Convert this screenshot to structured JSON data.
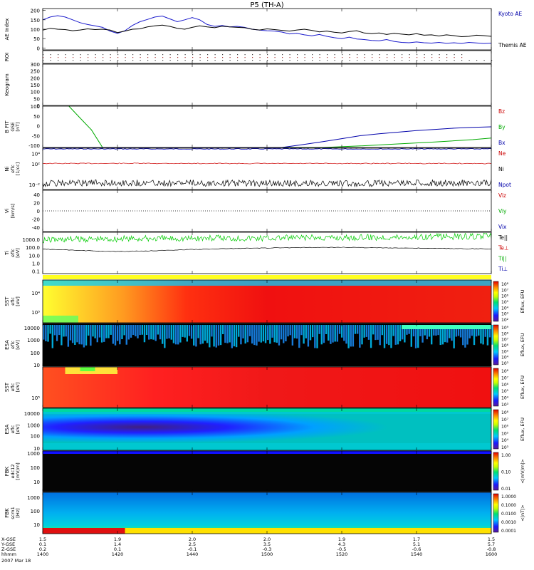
{
  "chart_data": {
    "type": "line",
    "title": "P5 (TH-A)",
    "date_label": "2007 Mar 18",
    "time_axis": {
      "label": "hhmm",
      "start": "14:00",
      "end": "16:00",
      "tick_labels": [
        "1400",
        "1420",
        "1440",
        "1500",
        "1520",
        "1540",
        "1600"
      ]
    },
    "ephemeris": [
      {
        "label": "X-GSE",
        "values": [
          "1.5",
          "1.9",
          "2.0",
          "2.0",
          "1.9",
          "1.7",
          "1.5"
        ]
      },
      {
        "label": "Y-GSE",
        "values": [
          "0.1",
          "1.4",
          "2.5",
          "3.5",
          "4.3",
          "5.1",
          "5.7"
        ]
      },
      {
        "label": "Z-GSE",
        "values": [
          "0.2",
          "0.1",
          "-0.1",
          "-0.3",
          "-0.5",
          "-0.6",
          "-0.8"
        ]
      }
    ],
    "panels": [
      {
        "id": "ae",
        "ylabel": "AE Index",
        "ylim": [
          -10,
          210
        ],
        "yticks": [
          "200",
          "150",
          "100",
          "50",
          "0"
        ],
        "legend": [
          {
            "name": "Kyoto AE",
            "color": "#0000aa"
          },
          {
            "name": "Themis AE",
            "color": "#000000"
          }
        ],
        "series": [
          {
            "name": "Kyoto AE",
            "color": "#1a1acc",
            "x": [
              0,
              2,
              4,
              6,
              8,
              10,
              12,
              14,
              16,
              18,
              20,
              22,
              24,
              26,
              28,
              30,
              32,
              34,
              36,
              38,
              40,
              42,
              44,
              46,
              48,
              50,
              52,
              54,
              56,
              58,
              60,
              62,
              64,
              66,
              68,
              70,
              72,
              74,
              76,
              78,
              80,
              82,
              84,
              86,
              88,
              90,
              92,
              94,
              96,
              98,
              100,
              102,
              104,
              106,
              108,
              110,
              112,
              114,
              116,
              118,
              120
            ],
            "values": [
              150,
              165,
              172,
              165,
              150,
              135,
              125,
              118,
              110,
              90,
              78,
              92,
              120,
              140,
              152,
              165,
              170,
              155,
              140,
              150,
              162,
              150,
              125,
              115,
              120,
              112,
              115,
              110,
              100,
              95,
              92,
              90,
              85,
              75,
              78,
              70,
              65,
              72,
              62,
              55,
              50,
              58,
              48,
              45,
              40,
              38,
              45,
              35,
              30,
              28,
              32,
              28,
              26,
              30,
              25,
              28,
              24,
              30,
              27,
              24,
              26
            ]
          },
          {
            "name": "Themis AE",
            "color": "#000000",
            "x": [
              0,
              2,
              4,
              6,
              8,
              10,
              12,
              14,
              16,
              18,
              20,
              22,
              24,
              26,
              28,
              30,
              32,
              34,
              36,
              38,
              40,
              42,
              44,
              46,
              48,
              50,
              52,
              54,
              56,
              58,
              60,
              62,
              64,
              66,
              68,
              70,
              72,
              74,
              76,
              78,
              80,
              82,
              84,
              86,
              88,
              90,
              92,
              94,
              96,
              98,
              100,
              102,
              104,
              106,
              108,
              110,
              112,
              114,
              116,
              118,
              120
            ],
            "values": [
              95,
              105,
              100,
              98,
              92,
              96,
              102,
              98,
              100,
              96,
              82,
              90,
              100,
              102,
              112,
              118,
              122,
              115,
              105,
              100,
              110,
              118,
              112,
              108,
              116,
              112,
              110,
              108,
              100,
              96,
              102,
              98,
              94,
              90,
              96,
              100,
              94,
              86,
              90,
              84,
              80,
              88,
              92,
              80,
              76,
              80,
              72,
              78,
              74,
              70,
              76,
              68,
              70,
              64,
              70,
              66,
              60,
              62,
              68,
              66,
              62
            ]
          }
        ]
      },
      {
        "id": "roi",
        "ylabel": "ROI",
        "dot_rows": [
          {
            "color": "#444444",
            "x_end": 112
          },
          {
            "color": "#aa3333",
            "x_end": 112
          },
          {
            "color": "#444444",
            "x_end": 120
          }
        ]
      },
      {
        "id": "keogram",
        "ylabel": "Keogram",
        "ylim": [
          0,
          300
        ],
        "yticks": [
          "300",
          "250",
          "200",
          "150",
          "100",
          "50",
          "0"
        ]
      },
      {
        "id": "bfit",
        "ylabel": "B FIT",
        "sublabels": [
          "GSE",
          "[nT]"
        ],
        "ylim": [
          -110,
          100
        ],
        "yticks": [
          "100",
          "50",
          "0",
          "-50",
          "-100"
        ],
        "legend": [
          {
            "name": "Bz",
            "color": "#cc0000"
          },
          {
            "name": "By",
            "color": "#00aa00"
          },
          {
            "name": "Bx",
            "color": "#0000aa"
          }
        ],
        "series": [
          {
            "name": "By",
            "color": "#00aa00",
            "x": [
              7,
              10,
              13,
              15,
              16,
              75,
              85,
              95,
              105,
              115,
              120
            ],
            "values": [
              100,
              40,
              -20,
              -80,
              -110,
              -110,
              -102,
              -92,
              -82,
              -70,
              -62
            ]
          },
          {
            "name": "Bx",
            "color": "#0000aa",
            "x": [
              0,
              64,
              70,
              75,
              80,
              85,
              90,
              95,
              100,
              105,
              110,
              115,
              120
            ],
            "values": [
              -110,
              -110,
              -94,
              -80,
              -65,
              -50,
              -40,
              -32,
              -24,
              -18,
              -12,
              -8,
              -5
            ]
          }
        ]
      },
      {
        "id": "ni",
        "ylabel": "Ni",
        "sublabels": [
          "eflc",
          "[1/cc]"
        ],
        "log": true,
        "ylim": [
          0.001,
          100000
        ],
        "ytick_values": [
          10000,
          100,
          0.01
        ],
        "legend": [
          {
            "name": "Ne",
            "color": "#cc0000"
          },
          {
            "name": "Ni",
            "color": "#000000"
          },
          {
            "name": "Npot",
            "color": "#0000aa"
          }
        ],
        "series": [
          {
            "name": "Npot",
            "color": "#0000cc",
            "x": [
              0,
              20,
              40,
              60,
              80,
              100,
              120
            ],
            "values": [
              70000,
              70000,
              69000,
              70000,
              69500,
              70000,
              70000
            ]
          },
          {
            "name": "Ne",
            "color": "#cc0000",
            "x": [
              0,
              20,
              40,
              60,
              80,
              100,
              120
            ],
            "values": [
              110,
              115,
              112,
              108,
              110,
              112,
              110
            ]
          },
          {
            "name": "Ni",
            "color": "#000000",
            "x": [
              0,
              20,
              40,
              60,
              80,
              100,
              120
            ],
            "values": [
              0.015,
              0.02,
              0.018,
              0.016,
              0.014,
              0.018,
              0.02
            ]
          }
        ]
      },
      {
        "id": "vi",
        "ylabel": "Vi",
        "sublabels": [
          "[km/s]"
        ],
        "ylim": [
          -50,
          50
        ],
        "yticks": [
          "40",
          "20",
          "0",
          "-20",
          "-40"
        ],
        "legend": [
          {
            "name": "Viz",
            "color": "#cc0000"
          },
          {
            "name": "Viy",
            "color": "#00aa00"
          },
          {
            "name": "Vix",
            "color": "#0000aa"
          }
        ]
      },
      {
        "id": "ti",
        "ylabel": "Ti",
        "sublabels": [
          "eflc",
          "[eV]"
        ],
        "log": true,
        "ylim": [
          0.05,
          8000
        ],
        "ytick_values": [
          1000,
          100,
          10,
          1,
          0.1
        ],
        "yticks": [
          "1000.0",
          "100.0",
          "10.0",
          "1.0",
          "0.1"
        ],
        "legend": [
          {
            "name": "Te||",
            "color": "#000000"
          },
          {
            "name": "Te⊥",
            "color": "#cc0000"
          },
          {
            "name": "Ti||",
            "color": "#00aa00"
          },
          {
            "name": "Ti⊥",
            "color": "#0000aa"
          }
        ],
        "series": [
          {
            "name": "Ti||",
            "color": "#00cc00",
            "x": [
              0,
              10,
              20,
              30,
              40,
              50,
              60,
              70,
              80,
              90,
              100,
              110,
              120
            ],
            "values": [
              900,
              1100,
              1200,
              1300,
              1400,
              1500,
              1500,
              1600,
              1700,
              1900,
              2100,
              2300,
              2500
            ]
          },
          {
            "name": "Te||",
            "color": "#000000",
            "x": [
              0,
              10,
              20,
              30,
              40,
              50,
              60,
              70,
              80,
              90,
              100,
              110,
              120
            ],
            "values": [
              60,
              40,
              30,
              38,
              55,
              70,
              85,
              95,
              100,
              90,
              80,
              70,
              65
            ]
          }
        ]
      },
      {
        "id": "sst_eflux",
        "ylabel": "SST",
        "sublabels": [
          "eflc",
          "[eV]"
        ],
        "ytick_values": [
          10000,
          100000
        ],
        "yticks": [
          "10⁵",
          "10⁴"
        ],
        "colorbar": {
          "label": "Eflux, EFU",
          "ticks": [
            "10⁸",
            "10⁷",
            "10⁶",
            "10⁵",
            "10⁴",
            "10³",
            "10²"
          ]
        }
      },
      {
        "id": "esa_eflux",
        "ylabel": "ESA",
        "sublabels": [
          "eflc",
          "[eV]"
        ],
        "yticks": [
          "10000",
          "1000",
          "100",
          "10"
        ],
        "colorbar": {
          "label": "Eflux, EFU",
          "ticks": [
            "10⁹",
            "10⁸",
            "10⁷",
            "10⁶",
            "10⁵",
            "10⁴",
            "10³"
          ]
        }
      },
      {
        "id": "sst_ion",
        "ylabel": "SST",
        "sublabels": [
          "eflc",
          "[eV]"
        ],
        "yticks": [
          "10⁵"
        ],
        "colorbar": {
          "label": "Eflux, EFU",
          "ticks": [
            "10⁸",
            "10⁷",
            "10⁶",
            "10⁵",
            "10⁴",
            "10³"
          ]
        }
      },
      {
        "id": "esa_ion",
        "ylabel": "ESA",
        "sublabels": [
          "eflc",
          "[eV]"
        ],
        "yticks": [
          "10000",
          "1000",
          "100",
          "10"
        ],
        "colorbar": {
          "label": "Eflux, EFU",
          "ticks": [
            "10⁸",
            "10⁷",
            "10⁶",
            "10⁵",
            "10⁴",
            "10³"
          ]
        }
      },
      {
        "id": "fbk_edc",
        "ylabel": "FBK",
        "sublabels": [
          "edc12",
          "[mV/m]"
        ],
        "yticks": [
          "1000",
          "100",
          "10"
        ],
        "colorbar": {
          "label": "<|mV/m|>",
          "ticks": [
            "1.00",
            "0.10",
            "0.01"
          ]
        }
      },
      {
        "id": "fbk_scm",
        "ylabel": "FBK",
        "sublabels": [
          "scm1",
          "[Hz]"
        ],
        "yticks": [
          "1000",
          "100",
          "10"
        ],
        "colorbar": {
          "label": "<|nT|>",
          "ticks": [
            "1.0000",
            "0.1000",
            "0.0100",
            "0.0010",
            "0.0001"
          ]
        }
      }
    ]
  }
}
